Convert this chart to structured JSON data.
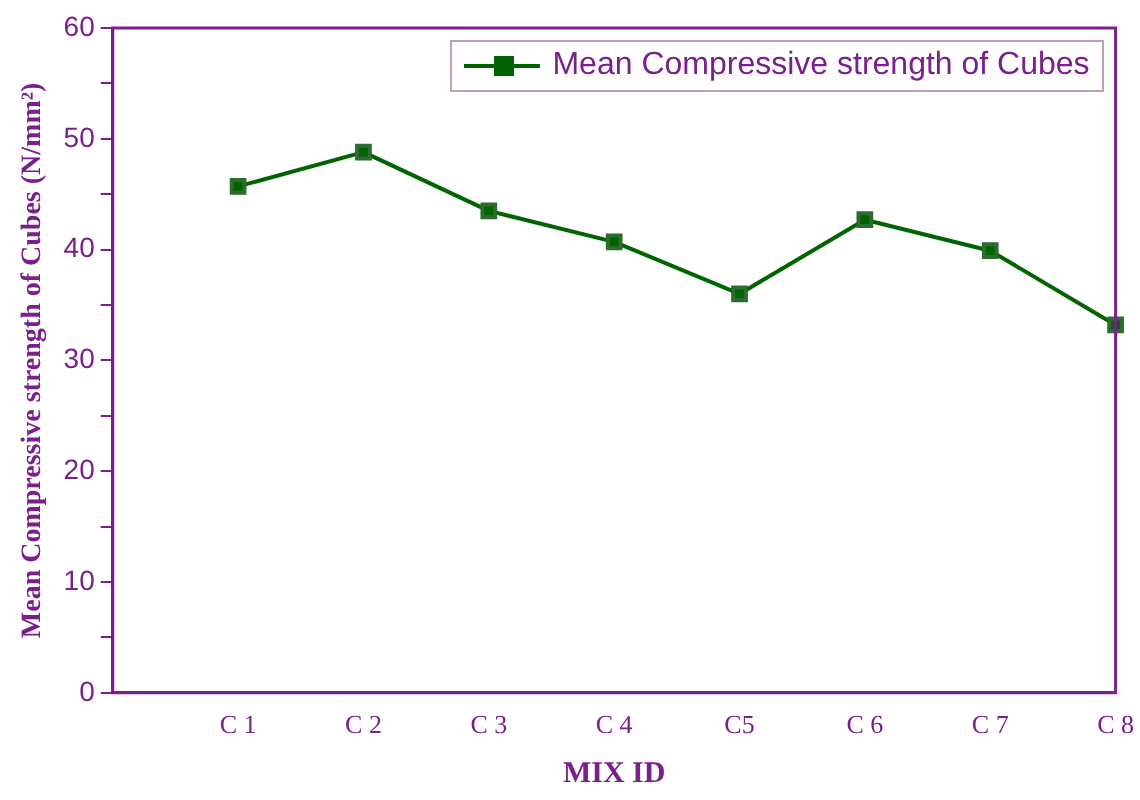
{
  "chart_data": {
    "type": "line",
    "xlabel": "MIX ID",
    "ylabel": "Mean Compressive strength of Cubes (N/mm²)",
    "categories": [
      null,
      "C 1",
      "C 2",
      "C 3",
      "C 4",
      "C5",
      "C 6",
      "C 7",
      "C 8"
    ],
    "series": [
      {
        "name": "Mean Compressive strength of Cubes",
        "color": "#006400",
        "values": [
          null,
          45.7,
          48.8,
          43.5,
          40.7,
          36.0,
          42.7,
          39.9,
          33.2
        ]
      }
    ],
    "ylim": [
      0,
      60
    ],
    "yticks": [
      0,
      {
        "value": 5,
        "label": null
      },
      10,
      {
        "value": 15,
        "label": null
      },
      20,
      {
        "value": 25,
        "label": null
      },
      30,
      {
        "value": 35,
        "label": null
      },
      40,
      {
        "value": 45,
        "label": null
      },
      50,
      {
        "value": 55,
        "label": null
      },
      60
    ],
    "grid": false,
    "legend": "top right",
    "marker": "square",
    "line_style": "solid"
  }
}
